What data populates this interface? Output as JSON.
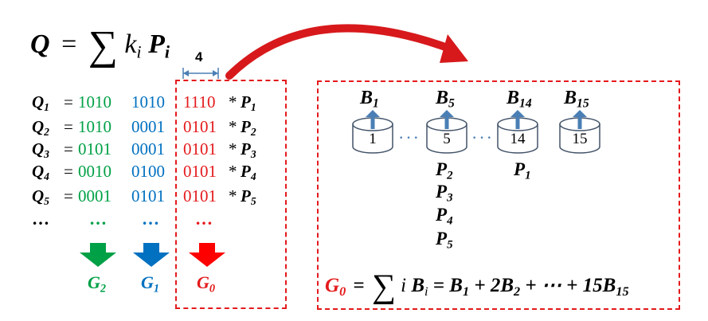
{
  "formula_top": {
    "Q": "Q",
    "equals": "=",
    "sum": "∑",
    "k": "k",
    "i": "i",
    "P": "P",
    "Pi": "i"
  },
  "width_label": "4",
  "rows": [
    {
      "q": "Q",
      "sub": "1",
      "g2": "1010",
      "g1": "1010",
      "g0": "1110",
      "p": "P",
      "psub": "1"
    },
    {
      "q": "Q",
      "sub": "2",
      "g2": "1010",
      "g1": "0001",
      "g0": "0101",
      "p": "P",
      "psub": "2"
    },
    {
      "q": "Q",
      "sub": "3",
      "g2": "0101",
      "g1": "0001",
      "g0": "0101",
      "p": "P",
      "psub": "3"
    },
    {
      "q": "Q",
      "sub": "4",
      "g2": "0010",
      "g1": "0100",
      "g0": "0101",
      "p": "P",
      "psub": "4"
    },
    {
      "q": "Q",
      "sub": "5",
      "g2": "0001",
      "g1": "0101",
      "g0": "0101",
      "p": "P",
      "psub": "5"
    }
  ],
  "ellipsis": "…",
  "eq_sign": "=",
  "star": "*",
  "groups": [
    {
      "name": "G",
      "sub": "2",
      "color": "#00a046"
    },
    {
      "name": "G",
      "sub": "1",
      "color": "#0070c0"
    },
    {
      "name": "G",
      "sub": "0",
      "color": "#e41a1c"
    }
  ],
  "buckets": [
    {
      "label": "B",
      "sub": "1",
      "num": "1",
      "points": []
    },
    {
      "label": "B",
      "sub": "5",
      "num": "5",
      "points": [
        {
          "p": "P",
          "sub": "2"
        },
        {
          "p": "P",
          "sub": "3"
        },
        {
          "p": "P",
          "sub": "4"
        },
        {
          "p": "P",
          "sub": "5"
        }
      ]
    },
    {
      "label": "B",
      "sub": "14",
      "num": "14",
      "points": [
        {
          "p": "P",
          "sub": "1"
        }
      ]
    },
    {
      "label": "B",
      "sub": "15",
      "num": "15",
      "points": []
    }
  ],
  "bucket_dots": "···",
  "formula_bottom": {
    "g": "G",
    "gsub": "0",
    "equals": "=",
    "sum": "∑",
    "i": "i",
    "b": "B",
    "bsub": "i",
    "rest": "= B",
    "rest_sub1": "1",
    "mid": " + 2B",
    "mid_sub": "2",
    "tail": " + ⋯ + 15B",
    "tail_sub": "15"
  },
  "colors": {
    "red": "#e41a1c",
    "green": "#00a046",
    "blue": "#0070c0",
    "bucket_arrow": "#4a7fb5"
  }
}
